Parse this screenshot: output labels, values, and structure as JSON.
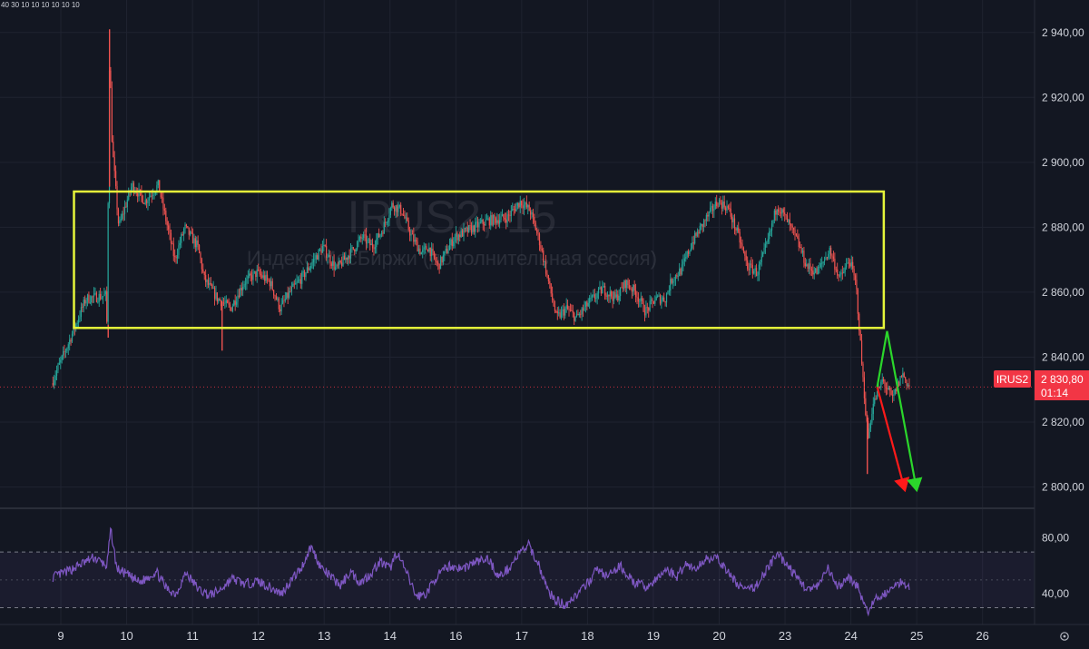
{
  "header": {
    "intervals_text": "40 30 10 10 10 10 10 10"
  },
  "watermark": {
    "symbol": "IRUS2, 15",
    "description": "Индекс МосБиржи (дополнительная сессия)"
  },
  "price_badge": {
    "ticker": "IRUS2",
    "price": "2 830,80",
    "countdown": "01:14",
    "color": "#f23645"
  },
  "settings_icon": "gear-icon",
  "colors": {
    "up": "#26a69a",
    "down": "#ef5350",
    "box": "#e5f53a",
    "rsi": "#7e57c2",
    "arrow_red": "#ff1a1a",
    "arrow_green": "#2bd62b",
    "background": "#131722"
  },
  "chart_data": [
    {
      "type": "candlestick",
      "title": "",
      "ylim": [
        2794,
        2950
      ],
      "y_ticks": [
        {
          "value": 2940,
          "label": "2 940,00"
        },
        {
          "value": 2920,
          "label": "2 920,00"
        },
        {
          "value": 2900,
          "label": "2 900,00"
        },
        {
          "value": 2880,
          "label": "2 880,00"
        },
        {
          "value": 2860,
          "label": "2 860,00"
        },
        {
          "value": 2840,
          "label": "2 840,00"
        },
        {
          "value": 2820,
          "label": "2 820,00"
        },
        {
          "value": 2800,
          "label": "2 800,00"
        }
      ],
      "x_ticks": [
        "9",
        "10",
        "11",
        "12",
        "13",
        "14",
        "16",
        "17",
        "18",
        "19",
        "20",
        "23",
        "24",
        "25",
        "26"
      ],
      "grid": true,
      "last_price": 2830.8,
      "price_path": [
        [
          -0.12,
          2832
        ],
        [
          0.15,
          2845
        ],
        [
          0.4,
          2858
        ],
        [
          0.7,
          2859
        ],
        [
          0.72,
          2850
        ],
        [
          0.76,
          2935
        ],
        [
          0.8,
          2905
        ],
        [
          0.9,
          2880
        ],
        [
          1.1,
          2893
        ],
        [
          1.3,
          2888
        ],
        [
          1.5,
          2893
        ],
        [
          1.75,
          2870
        ],
        [
          1.9,
          2880
        ],
        [
          2.1,
          2874
        ],
        [
          2.2,
          2864
        ],
        [
          2.4,
          2858
        ],
        [
          2.6,
          2855
        ],
        [
          2.8,
          2863
        ],
        [
          3.0,
          2866
        ],
        [
          3.2,
          2863
        ],
        [
          3.35,
          2855
        ],
        [
          3.5,
          2860
        ],
        [
          3.7,
          2865
        ],
        [
          4.0,
          2874
        ],
        [
          4.2,
          2867
        ],
        [
          4.45,
          2873
        ],
        [
          4.6,
          2877
        ],
        [
          4.75,
          2874
        ],
        [
          4.9,
          2879
        ],
        [
          5.05,
          2887
        ],
        [
          5.2,
          2885
        ],
        [
          5.35,
          2877
        ],
        [
          5.5,
          2872
        ],
        [
          5.6,
          2874
        ],
        [
          5.75,
          2868
        ],
        [
          6.0,
          2877
        ],
        [
          6.3,
          2880
        ],
        [
          6.5,
          2882
        ],
        [
          6.8,
          2883
        ],
        [
          7.0,
          2888
        ],
        [
          7.15,
          2885
        ],
        [
          7.3,
          2875
        ],
        [
          7.45,
          2861
        ],
        [
          7.55,
          2852
        ],
        [
          7.7,
          2855
        ],
        [
          7.85,
          2852
        ],
        [
          8.05,
          2857
        ],
        [
          8.25,
          2861
        ],
        [
          8.45,
          2858
        ],
        [
          8.6,
          2863
        ],
        [
          8.75,
          2860
        ],
        [
          8.9,
          2854
        ],
        [
          9.05,
          2858
        ],
        [
          9.2,
          2858
        ],
        [
          9.3,
          2864
        ],
        [
          9.45,
          2867
        ],
        [
          9.6,
          2875
        ],
        [
          9.8,
          2882
        ],
        [
          10.0,
          2888
        ],
        [
          10.15,
          2886
        ],
        [
          10.3,
          2878
        ],
        [
          10.45,
          2868
        ],
        [
          10.6,
          2866
        ],
        [
          10.75,
          2875
        ],
        [
          10.9,
          2887
        ],
        [
          11.05,
          2882
        ],
        [
          11.2,
          2876
        ],
        [
          11.35,
          2868
        ],
        [
          11.5,
          2866
        ],
        [
          11.7,
          2873
        ],
        [
          11.85,
          2864
        ],
        [
          12.0,
          2870
        ],
        [
          12.1,
          2862
        ],
        [
          12.2,
          2834
        ],
        [
          12.28,
          2815
        ],
        [
          12.35,
          2825
        ],
        [
          12.5,
          2833
        ],
        [
          12.65,
          2827
        ],
        [
          12.8,
          2835
        ],
        [
          12.9,
          2831
        ]
      ],
      "low_wicks": [
        [
          0.72,
          2846
        ],
        [
          2.45,
          2842
        ],
        [
          12.25,
          2804
        ]
      ],
      "high_wicks": [
        [
          0.74,
          2941
        ]
      ],
      "range_box": {
        "x_start": 0.2,
        "x_end": 12.5,
        "y_top": 2891,
        "y_bottom": 2849
      },
      "arrows": [
        {
          "color": "red",
          "points": [
            [
              12.4,
              2830.8
            ],
            [
              12.82,
              2799
            ]
          ]
        },
        {
          "color": "green",
          "points": [
            [
              12.4,
              2830.8
            ],
            [
              12.55,
              2848
            ],
            [
              13.0,
              2799
            ]
          ]
        }
      ]
    },
    {
      "type": "line",
      "title": "",
      "ylim": [
        18,
        100
      ],
      "y_ticks": [
        {
          "value": 80,
          "label": "80,00"
        },
        {
          "value": 40,
          "label": "40,00"
        }
      ],
      "bands": [
        70,
        30
      ],
      "midline": 50,
      "series": [
        {
          "values": [
            [
              -0.12,
              52
            ],
            [
              0.1,
              56
            ],
            [
              0.3,
              61
            ],
            [
              0.5,
              66
            ],
            [
              0.7,
              60
            ],
            [
              0.76,
              86
            ],
            [
              0.85,
              58
            ],
            [
              1.0,
              54
            ],
            [
              1.2,
              48
            ],
            [
              1.45,
              56
            ],
            [
              1.6,
              44
            ],
            [
              1.75,
              40
            ],
            [
              1.9,
              55
            ],
            [
              2.1,
              43
            ],
            [
              2.25,
              39
            ],
            [
              2.4,
              42
            ],
            [
              2.6,
              51
            ],
            [
              2.8,
              47
            ],
            [
              3.0,
              49
            ],
            [
              3.2,
              44
            ],
            [
              3.35,
              40
            ],
            [
              3.5,
              50
            ],
            [
              3.65,
              58
            ],
            [
              3.8,
              74
            ],
            [
              3.95,
              59
            ],
            [
              4.1,
              52
            ],
            [
              4.25,
              46
            ],
            [
              4.4,
              56
            ],
            [
              4.55,
              48
            ],
            [
              4.7,
              54
            ],
            [
              4.85,
              63
            ],
            [
              5.0,
              58
            ],
            [
              5.1,
              70
            ],
            [
              5.25,
              55
            ],
            [
              5.4,
              38
            ],
            [
              5.55,
              40
            ],
            [
              5.7,
              52
            ],
            [
              5.9,
              60
            ],
            [
              6.1,
              58
            ],
            [
              6.3,
              63
            ],
            [
              6.5,
              65
            ],
            [
              6.65,
              52
            ],
            [
              6.8,
              58
            ],
            [
              6.95,
              68
            ],
            [
              7.1,
              75
            ],
            [
              7.25,
              62
            ],
            [
              7.4,
              42
            ],
            [
              7.5,
              36
            ],
            [
              7.65,
              32
            ],
            [
              7.8,
              38
            ],
            [
              7.95,
              44
            ],
            [
              8.15,
              58
            ],
            [
              8.3,
              52
            ],
            [
              8.5,
              60
            ],
            [
              8.7,
              48
            ],
            [
              8.9,
              45
            ],
            [
              9.05,
              50
            ],
            [
              9.2,
              58
            ],
            [
              9.35,
              52
            ],
            [
              9.5,
              62
            ],
            [
              9.65,
              57
            ],
            [
              9.8,
              66
            ],
            [
              10.0,
              64
            ],
            [
              10.15,
              54
            ],
            [
              10.3,
              46
            ],
            [
              10.45,
              42
            ],
            [
              10.6,
              48
            ],
            [
              10.75,
              60
            ],
            [
              10.9,
              68
            ],
            [
              11.05,
              60
            ],
            [
              11.2,
              50
            ],
            [
              11.35,
              43
            ],
            [
              11.5,
              45
            ],
            [
              11.65,
              58
            ],
            [
              11.8,
              44
            ],
            [
              11.95,
              52
            ],
            [
              12.1,
              46
            ],
            [
              12.2,
              32
            ],
            [
              12.28,
              26
            ],
            [
              12.35,
              35
            ],
            [
              12.5,
              40
            ],
            [
              12.65,
              44
            ],
            [
              12.75,
              49
            ],
            [
              12.9,
              45
            ]
          ]
        }
      ]
    }
  ]
}
